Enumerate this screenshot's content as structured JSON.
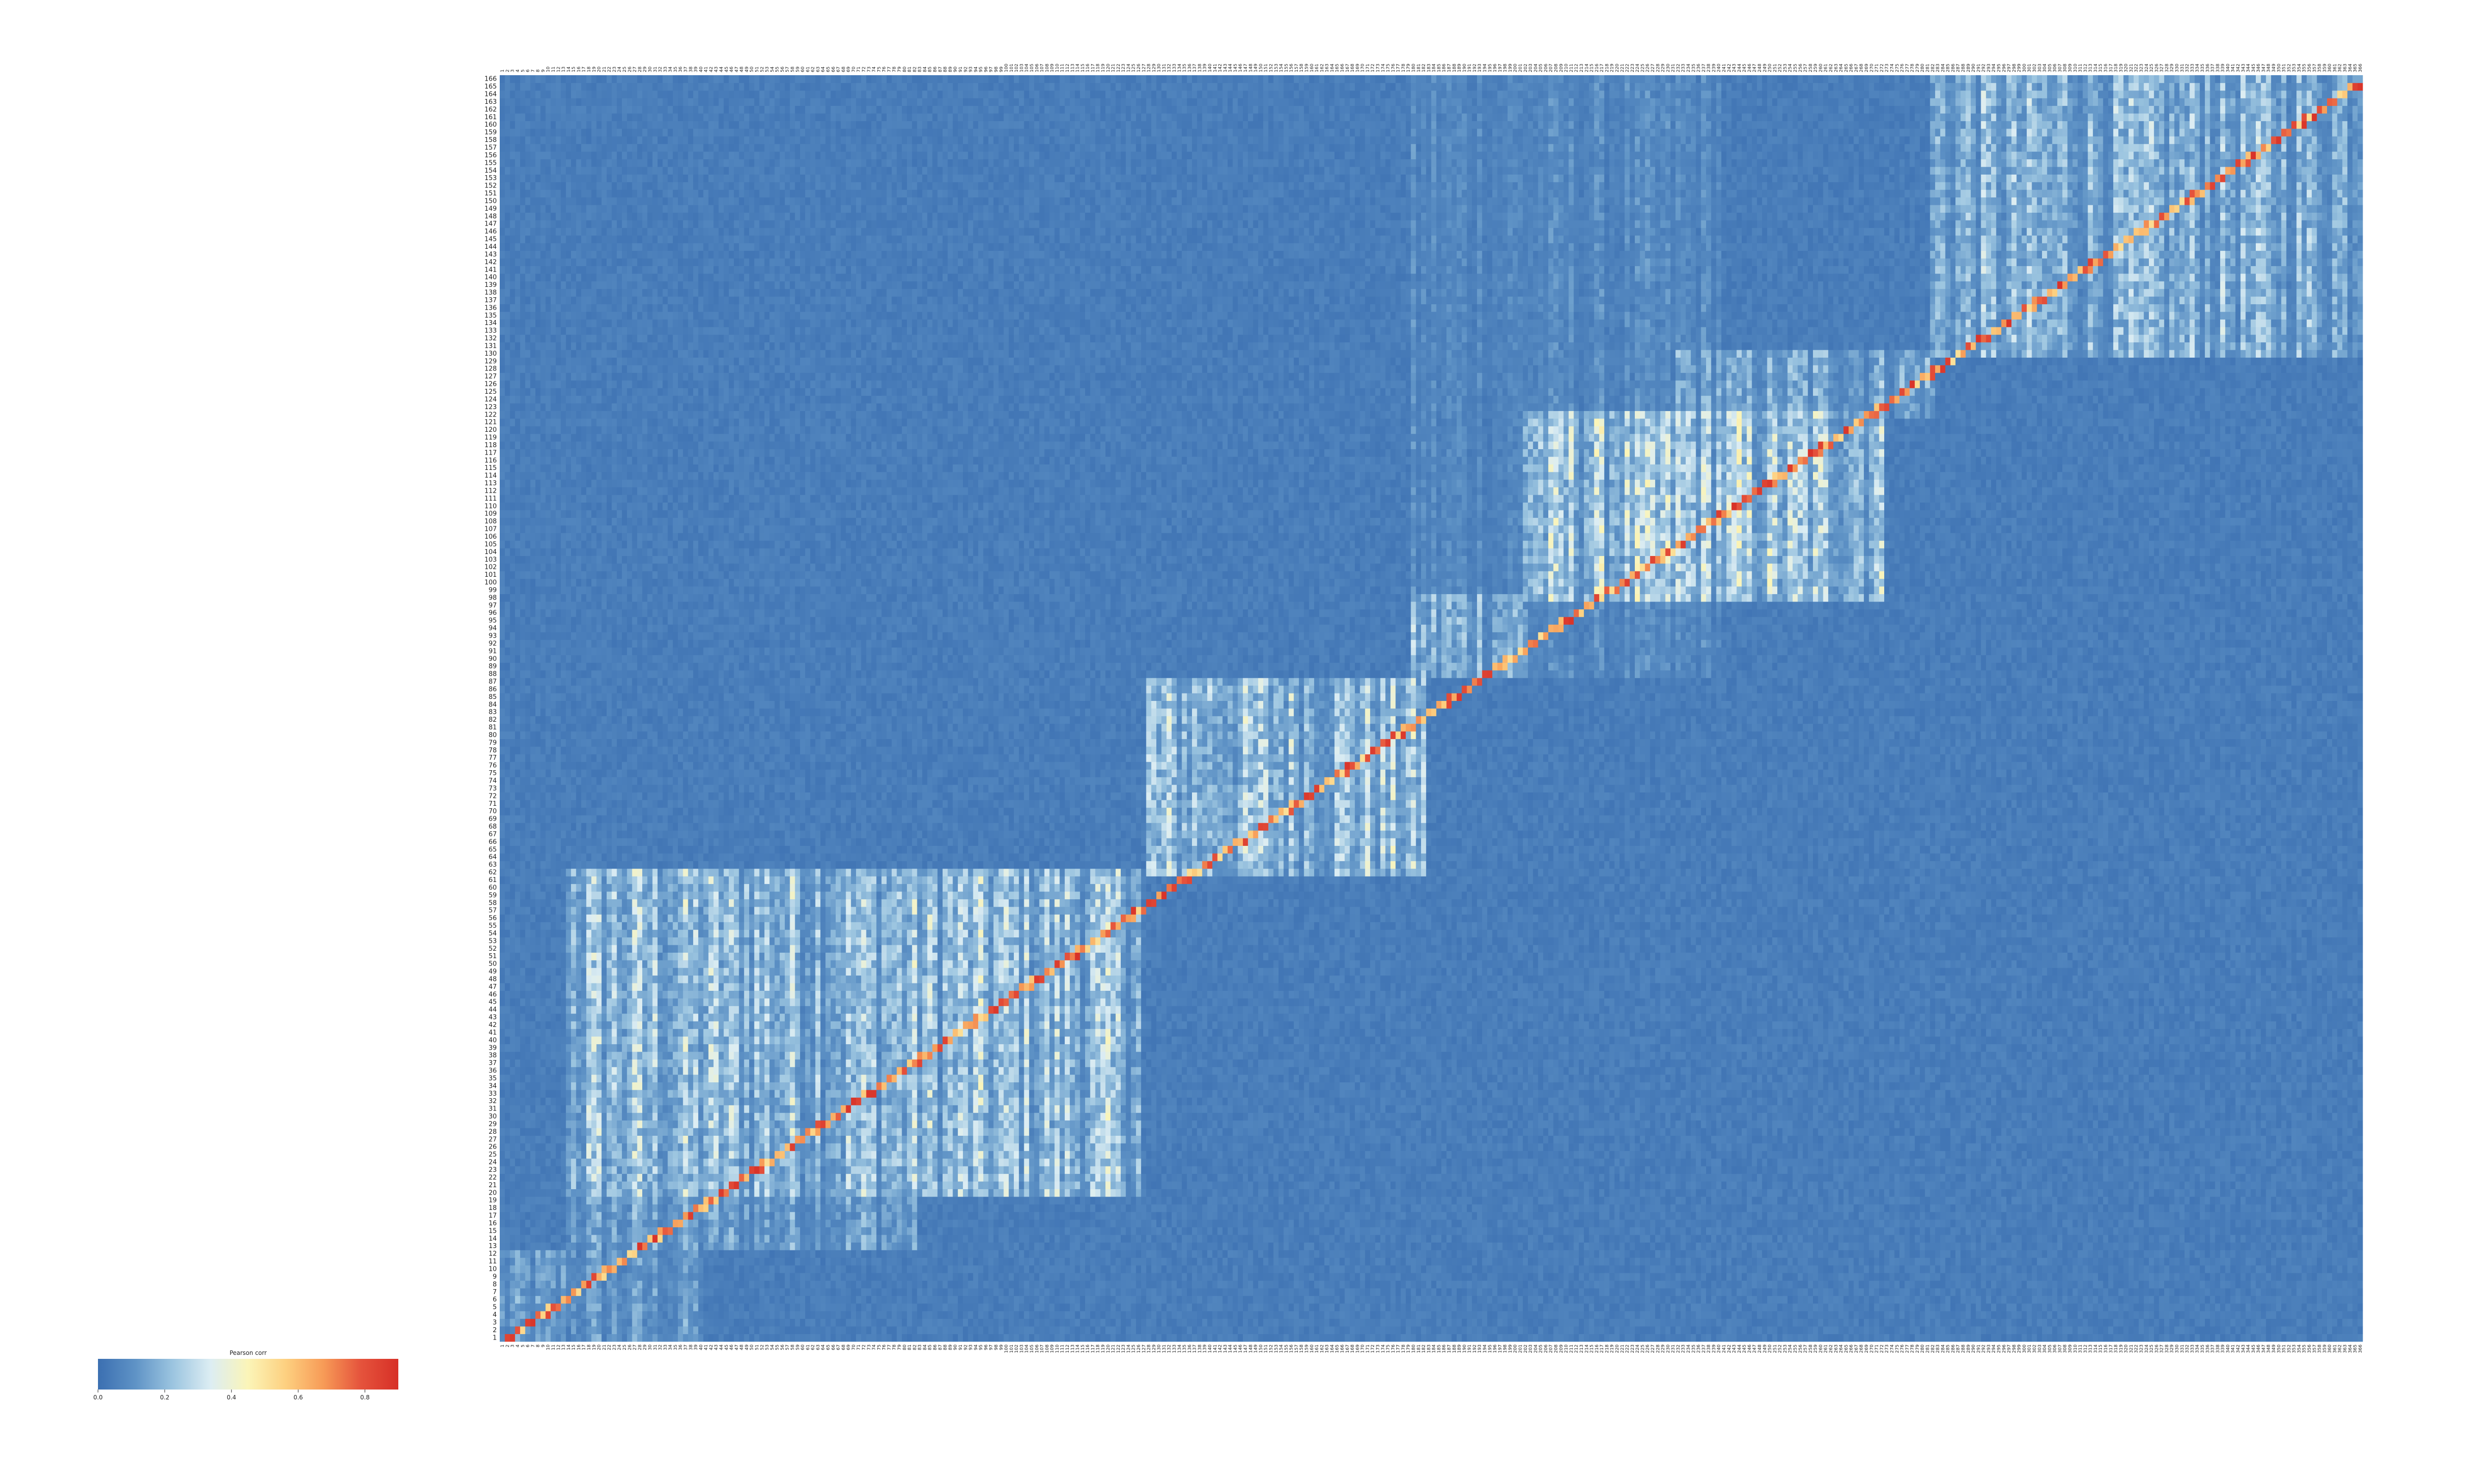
{
  "chart_data": {
    "type": "heatmap",
    "title": "",
    "xlabel": "",
    "ylabel": "",
    "rows": 166,
    "cols": 366,
    "row_labels_first": 1,
    "row_labels_last": 166,
    "vlim": [
      0.0,
      0.9
    ],
    "colormap": [
      "#3b6fb1",
      "#5f93c6",
      "#9cc5e0",
      "#dcedf3",
      "#fbf5b8",
      "#fdd080",
      "#f79b57",
      "#e5533c",
      "#d73027"
    ],
    "colorbar": {
      "label": "Pearson corr",
      "ticks": [
        "0.0",
        "0.2",
        "0.4",
        "0.6",
        "0.8"
      ],
      "tick_values": [
        0.0,
        0.2,
        0.4,
        0.6,
        0.8
      ]
    },
    "blocks": [
      {
        "rows": [
          1,
          12
        ],
        "cols": [
          1,
          40
        ],
        "mean": 0.12
      },
      {
        "rows": [
          13,
          20
        ],
        "cols": [
          14,
          82
        ],
        "mean": 0.14
      },
      {
        "rows": [
          20,
          62
        ],
        "cols": [
          14,
          126
        ],
        "mean": 0.22
      },
      {
        "rows": [
          62,
          87
        ],
        "cols": [
          128,
          182
        ],
        "mean": 0.22
      },
      {
        "rows": [
          88,
          98
        ],
        "cols": [
          180,
          202
        ],
        "mean": 0.18
      },
      {
        "rows": [
          98,
          122
        ],
        "cols": [
          202,
          272
        ],
        "mean": 0.24
      },
      {
        "rows": [
          122,
          130
        ],
        "cols": [
          232,
          282
        ],
        "mean": 0.16
      },
      {
        "rows": [
          130,
          166
        ],
        "cols": [
          282,
          366
        ],
        "mean": 0.18
      },
      {
        "rows": [
          88,
          166
        ],
        "cols": [
          180,
          240
        ],
        "mean": 0.08
      }
    ],
    "diagonal_peak": 0.85
  }
}
